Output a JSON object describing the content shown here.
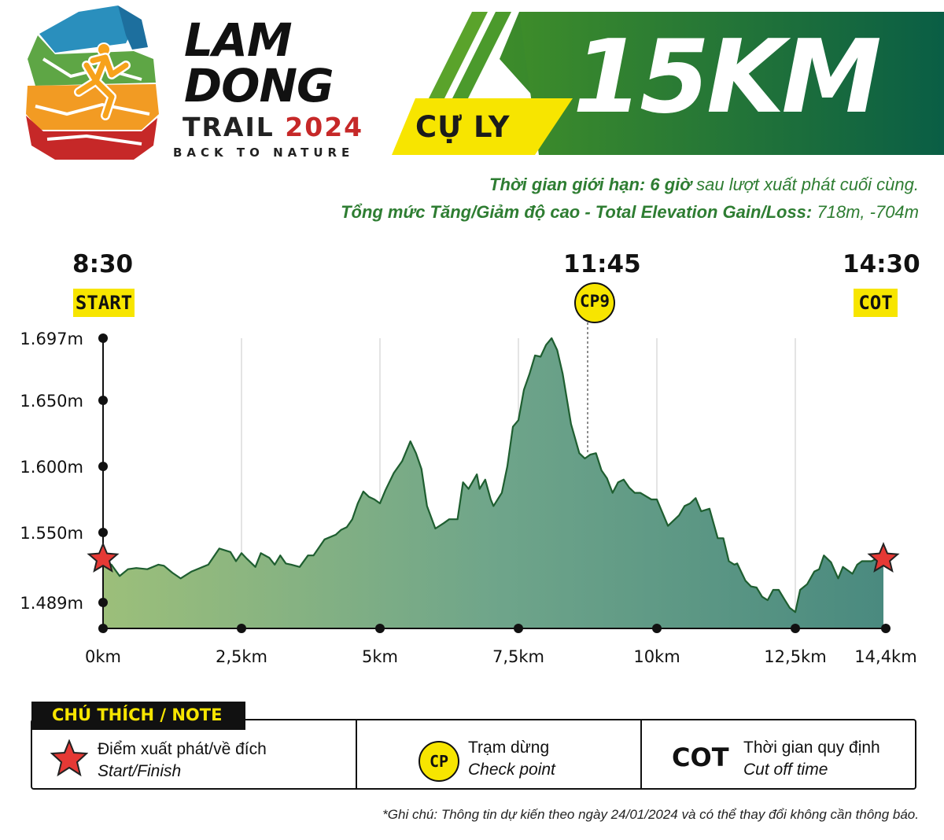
{
  "logo": {
    "line1": "LAM",
    "line2": "DONG",
    "line3_word": "TRAIL",
    "line3_year": "2024",
    "tagline": "BACK TO NATURE"
  },
  "header": {
    "distance_label": "CỰ LY",
    "distance_value": "15KM",
    "accent_color": "#2e7d32",
    "highlight_color": "#f7e500"
  },
  "info": {
    "time_limit_prefix": "Thời gian giới hạn:",
    "time_limit_value": "6 giờ",
    "time_limit_suffix": "sau lượt xuất phát cuối cùng.",
    "elevation_prefix": "Tổng mức Tăng/Giảm độ cao - Total Elevation Gain/Loss:",
    "elevation_value": "718m, -704m"
  },
  "markers": {
    "start_time": "8:30",
    "start_label": "START",
    "cp_time": "11:45",
    "cp_label": "CP9",
    "cot_time": "14:30",
    "cot_label": "COT"
  },
  "chart_data": {
    "type": "area",
    "xlabel": "",
    "ylabel": "",
    "x_unit": "km",
    "y_unit": "m",
    "xlim": [
      0,
      14.4
    ],
    "ylim": [
      1470,
      1697
    ],
    "x_ticks": [
      0,
      2.5,
      5,
      7.5,
      10,
      12.5,
      14.4
    ],
    "x_tick_labels": [
      "0km",
      "2,5km",
      "5km",
      "7,5km",
      "10km",
      "12,5km",
      "14,4km"
    ],
    "y_ticks": [
      1697,
      1650,
      1600,
      1550,
      1489
    ],
    "y_tick_labels": [
      "1.697m",
      "1.650m",
      "1.600m",
      "1.550m",
      "1.489m"
    ],
    "grid": true,
    "checkpoint": {
      "label": "CP9",
      "x": 8.75
    },
    "start_finish": [
      {
        "x": 0,
        "y": 1527
      },
      {
        "x": 14.4,
        "y": 1527
      }
    ],
    "series": [
      {
        "x": [
          0,
          0.15,
          0.3,
          0.45,
          0.6,
          0.8,
          1.0,
          1.1,
          1.25,
          1.4,
          1.6,
          1.9,
          2.1,
          2.3,
          2.4,
          2.5,
          2.6,
          2.75,
          2.85,
          3.0,
          3.1,
          3.2,
          3.3,
          3.4,
          3.55,
          3.7,
          3.8,
          4.0,
          4.2,
          4.3,
          4.4,
          4.5,
          4.6,
          4.7,
          4.8,
          4.9,
          5.0,
          5.1,
          5.25,
          5.4,
          5.55,
          5.65,
          5.75,
          5.85,
          6.0,
          6.15,
          6.25,
          6.4,
          6.5,
          6.6,
          6.75,
          6.8,
          6.9,
          7.0,
          7.05,
          7.2,
          7.3,
          7.4,
          7.5,
          7.6,
          7.7,
          7.8,
          7.9,
          8.0,
          8.1,
          8.2,
          8.3,
          8.45,
          8.6,
          8.7,
          8.8,
          8.9,
          9.0,
          9.1,
          9.2,
          9.3,
          9.4,
          9.5,
          9.6,
          9.7,
          9.9,
          10.0,
          10.2,
          10.4,
          10.5,
          10.6,
          10.7,
          10.8,
          10.95,
          11.1,
          11.2,
          11.3,
          11.4,
          11.45,
          11.6,
          11.7,
          11.8,
          11.9,
          12.0,
          12.1,
          12.2,
          12.3,
          12.4,
          12.5,
          12.6,
          12.75,
          12.9,
          13.0,
          13.1,
          13.25,
          13.4,
          13.5,
          13.6,
          13.7,
          13.8,
          13.9,
          14.0,
          14.1,
          14.2,
          14.4
        ],
        "y": [
          1525,
          1522,
          1512,
          1518,
          1519,
          1518,
          1522,
          1521,
          1515,
          1510,
          1516,
          1522,
          1536,
          1533,
          1525,
          1532,
          1527,
          1520,
          1532,
          1528,
          1522,
          1530,
          1523,
          1522,
          1520,
          1530,
          1530,
          1544,
          1548,
          1552,
          1554,
          1560,
          1572,
          1581,
          1577,
          1575,
          1572,
          1582,
          1595,
          1604,
          1619,
          1610,
          1598,
          1570,
          1553,
          1557,
          1560,
          1560,
          1588,
          1583,
          1594,
          1583,
          1590,
          1575,
          1570,
          1580,
          1600,
          1630,
          1635,
          1658,
          1670,
          1684,
          1683,
          1692,
          1697,
          1688,
          1670,
          1632,
          1610,
          1606,
          1609,
          1610,
          1597,
          1591,
          1580,
          1588,
          1590,
          1584,
          1580,
          1580,
          1575,
          1575,
          1555,
          1563,
          1570,
          1572,
          1576,
          1566,
          1568,
          1545,
          1545,
          1525,
          1522,
          1523,
          1508,
          1503,
          1502,
          1494,
          1491,
          1500,
          1500,
          1492,
          1485,
          1482,
          1500,
          1505,
          1516,
          1518,
          1530,
          1524,
          1510,
          1520,
          1517,
          1514,
          1522,
          1525,
          1525,
          1525,
          1527,
          1527
        ]
      }
    ]
  },
  "legend": {
    "title": "CHÚ THÍCH / NOTE",
    "items": [
      {
        "icon": "star-icon",
        "main": "Điểm xuất phát/về đích",
        "sub": "Start/Finish"
      },
      {
        "icon": "CP",
        "main": "Trạm dừng",
        "sub": "Check point"
      },
      {
        "icon": "COT",
        "main": "Thời gian quy định",
        "sub": "Cut off time"
      }
    ]
  },
  "footnote": "*Ghi chú: Thông tin dự kiến theo ngày 24/01/2024 và có thể thay đổi không cần thông báo."
}
